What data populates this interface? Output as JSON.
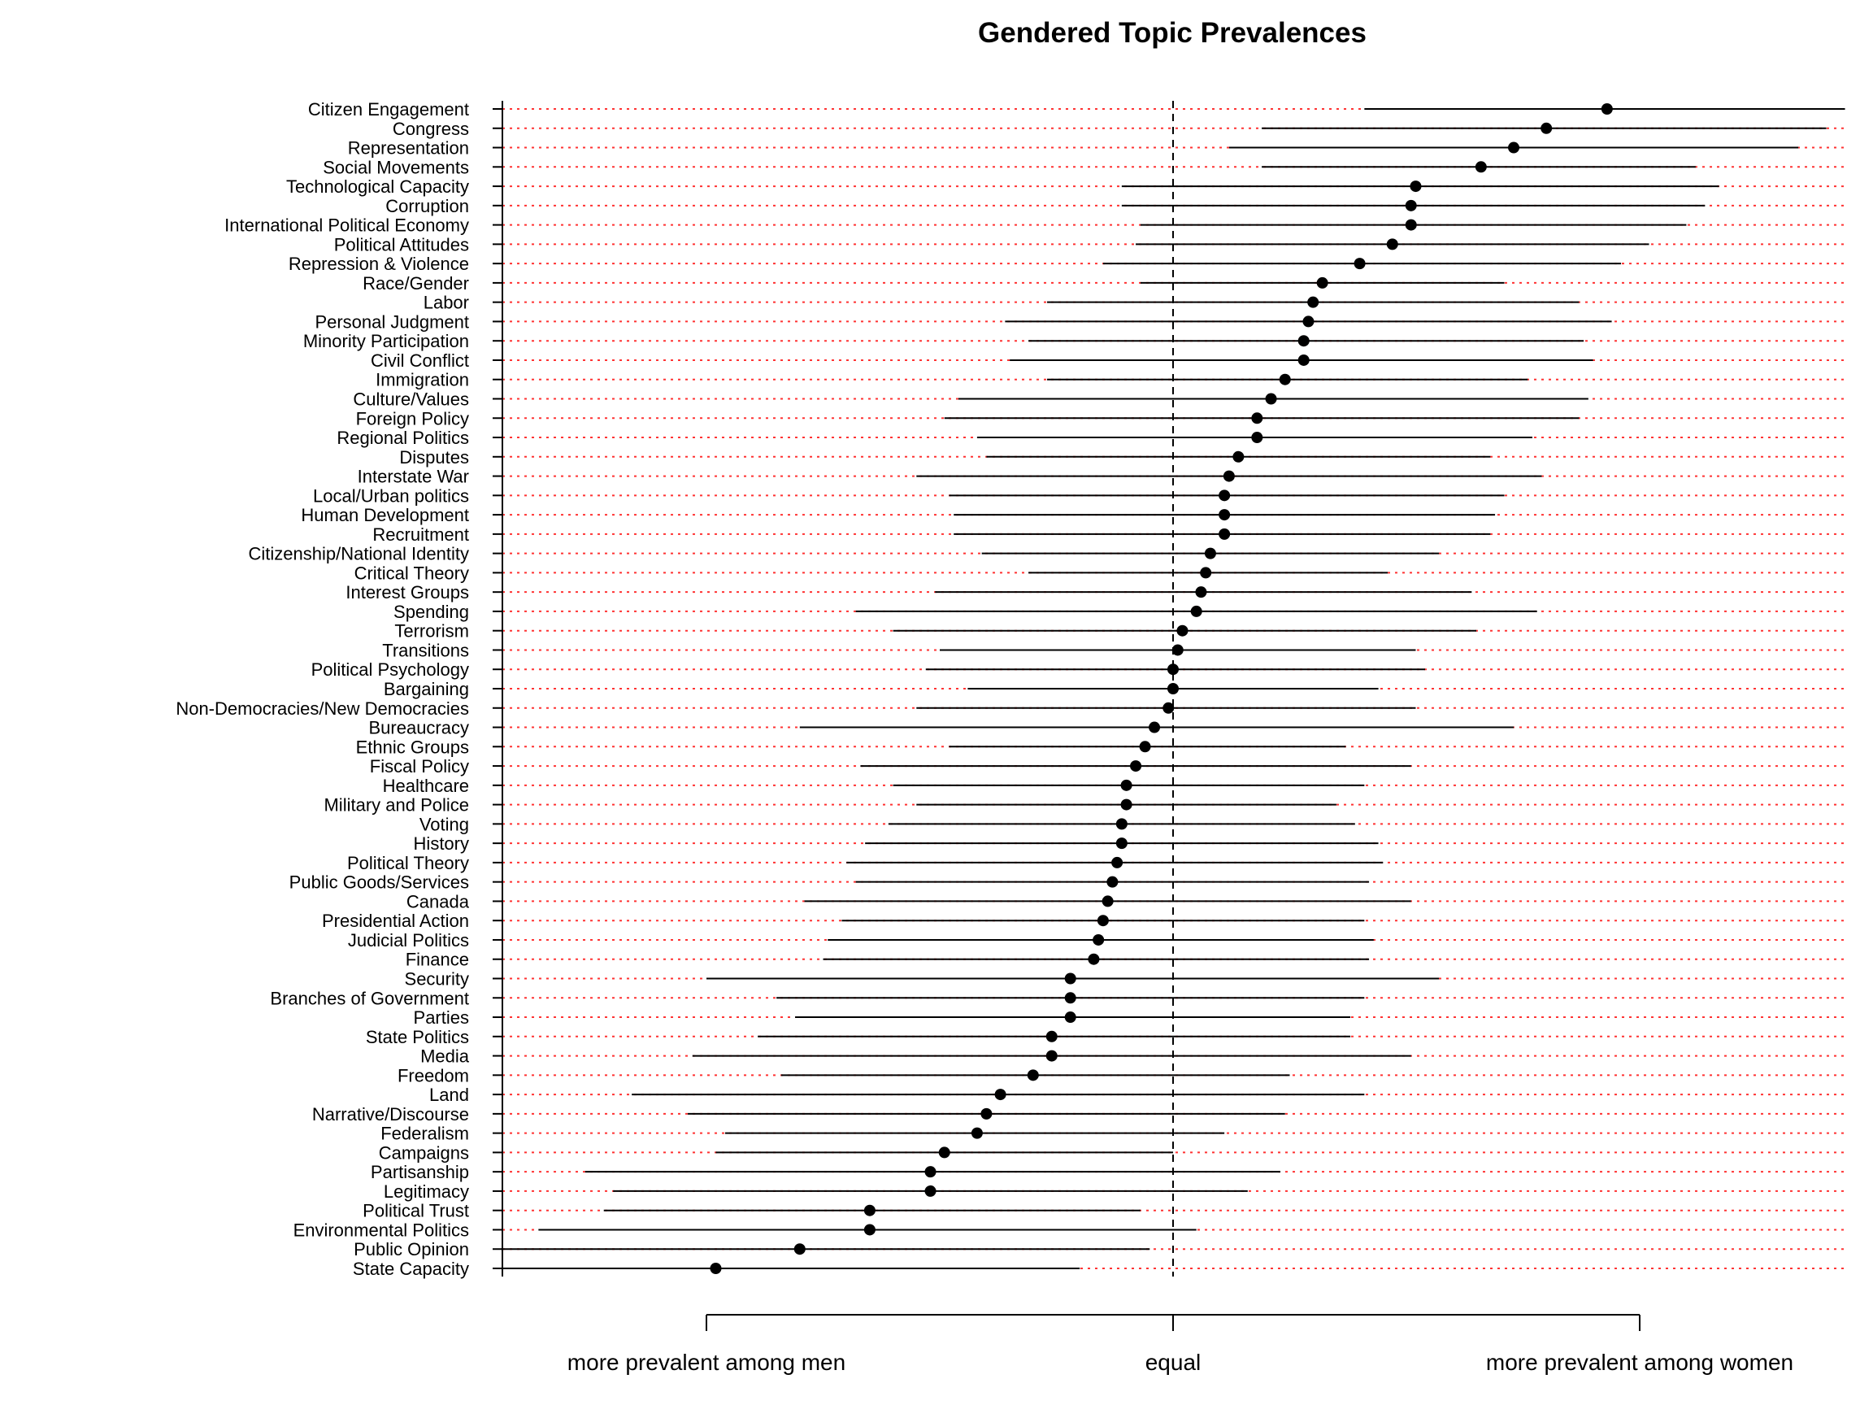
{
  "chart_data": {
    "type": "scatter",
    "title": "Gendered Topic Prevalences",
    "xlabel": "",
    "ylabel": "",
    "x_axis": {
      "ticks": [
        {
          "value": -1,
          "label": "more prevalent among men"
        },
        {
          "value": 0,
          "label": "equal"
        },
        {
          "value": 1,
          "label": "more prevalent among women"
        }
      ]
    },
    "xlim": [
      -1.44,
      1.35
    ],
    "reference_line": 0,
    "grid": "dotted red guide line per topic",
    "topics": [
      {
        "label": "Citizen Engagement",
        "estimate": 0.93,
        "lower": 0.41,
        "upper": 1.44
      },
      {
        "label": "Congress",
        "estimate": 0.8,
        "lower": 0.19,
        "upper": 1.4
      },
      {
        "label": "Representation",
        "estimate": 0.73,
        "lower": 0.12,
        "upper": 1.34
      },
      {
        "label": "Social Movements",
        "estimate": 0.66,
        "lower": 0.19,
        "upper": 1.12
      },
      {
        "label": "Technological Capacity",
        "estimate": 0.52,
        "lower": -0.11,
        "upper": 1.17
      },
      {
        "label": "Corruption",
        "estimate": 0.51,
        "lower": -0.11,
        "upper": 1.14
      },
      {
        "label": "International Political Economy",
        "estimate": 0.51,
        "lower": -0.07,
        "upper": 1.1
      },
      {
        "label": "Political Attitudes",
        "estimate": 0.47,
        "lower": -0.08,
        "upper": 1.02
      },
      {
        "label": "Repression & Violence",
        "estimate": 0.4,
        "lower": -0.15,
        "upper": 0.96
      },
      {
        "label": "Race/Gender",
        "estimate": 0.32,
        "lower": -0.07,
        "upper": 0.71
      },
      {
        "label": "Labor",
        "estimate": 0.3,
        "lower": -0.27,
        "upper": 0.87
      },
      {
        "label": "Personal Judgment",
        "estimate": 0.29,
        "lower": -0.36,
        "upper": 0.94
      },
      {
        "label": "Minority Participation",
        "estimate": 0.28,
        "lower": -0.31,
        "upper": 0.88
      },
      {
        "label": "Civil Conflict",
        "estimate": 0.28,
        "lower": -0.35,
        "upper": 0.9
      },
      {
        "label": "Immigration",
        "estimate": 0.24,
        "lower": -0.27,
        "upper": 0.76
      },
      {
        "label": "Culture/Values",
        "estimate": 0.21,
        "lower": -0.46,
        "upper": 0.89
      },
      {
        "label": "Foreign Policy",
        "estimate": 0.18,
        "lower": -0.49,
        "upper": 0.87
      },
      {
        "label": "Regional Politics",
        "estimate": 0.18,
        "lower": -0.42,
        "upper": 0.77
      },
      {
        "label": "Disputes",
        "estimate": 0.14,
        "lower": -0.4,
        "upper": 0.68
      },
      {
        "label": "Interstate War",
        "estimate": 0.12,
        "lower": -0.55,
        "upper": 0.79
      },
      {
        "label": "Local/Urban politics",
        "estimate": 0.11,
        "lower": -0.48,
        "upper": 0.71
      },
      {
        "label": "Human Development",
        "estimate": 0.11,
        "lower": -0.47,
        "upper": 0.69
      },
      {
        "label": "Recruitment",
        "estimate": 0.11,
        "lower": -0.47,
        "upper": 0.68
      },
      {
        "label": "Citizenship/National Identity",
        "estimate": 0.08,
        "lower": -0.41,
        "upper": 0.57
      },
      {
        "label": "Critical Theory",
        "estimate": 0.07,
        "lower": -0.31,
        "upper": 0.46
      },
      {
        "label": "Interest Groups",
        "estimate": 0.06,
        "lower": -0.51,
        "upper": 0.64
      },
      {
        "label": "Spending",
        "estimate": 0.05,
        "lower": -0.68,
        "upper": 0.78
      },
      {
        "label": "Terrorism",
        "estimate": 0.02,
        "lower": -0.6,
        "upper": 0.65
      },
      {
        "label": "Transitions",
        "estimate": 0.01,
        "lower": -0.5,
        "upper": 0.52
      },
      {
        "label": "Political Psychology",
        "estimate": 0.0,
        "lower": -0.53,
        "upper": 0.54
      },
      {
        "label": "Bargaining",
        "estimate": 0.0,
        "lower": -0.44,
        "upper": 0.44
      },
      {
        "label": "Non-Democracies/New Democracies",
        "estimate": -0.01,
        "lower": -0.55,
        "upper": 0.52
      },
      {
        "label": "Bureaucracy",
        "estimate": -0.04,
        "lower": -0.8,
        "upper": 0.73
      },
      {
        "label": "Ethnic Groups",
        "estimate": -0.06,
        "lower": -0.48,
        "upper": 0.37
      },
      {
        "label": "Fiscal Policy",
        "estimate": -0.08,
        "lower": -0.67,
        "upper": 0.51
      },
      {
        "label": "Healthcare",
        "estimate": -0.1,
        "lower": -0.6,
        "upper": 0.41
      },
      {
        "label": "Military and Police",
        "estimate": -0.1,
        "lower": -0.55,
        "upper": 0.35
      },
      {
        "label": "Voting",
        "estimate": -0.11,
        "lower": -0.61,
        "upper": 0.39
      },
      {
        "label": "History",
        "estimate": -0.11,
        "lower": -0.66,
        "upper": 0.44
      },
      {
        "label": "Political Theory",
        "estimate": -0.12,
        "lower": -0.7,
        "upper": 0.45
      },
      {
        "label": "Public Goods/Services",
        "estimate": -0.13,
        "lower": -0.68,
        "upper": 0.42
      },
      {
        "label": "Canada",
        "estimate": -0.14,
        "lower": -0.79,
        "upper": 0.51
      },
      {
        "label": "Presidential Action",
        "estimate": -0.15,
        "lower": -0.71,
        "upper": 0.41
      },
      {
        "label": "Judicial Politics",
        "estimate": -0.16,
        "lower": -0.74,
        "upper": 0.43
      },
      {
        "label": "Finance",
        "estimate": -0.17,
        "lower": -0.75,
        "upper": 0.42
      },
      {
        "label": "Security",
        "estimate": -0.22,
        "lower": -1.0,
        "upper": 0.57
      },
      {
        "label": "Branches of Government",
        "estimate": -0.22,
        "lower": -0.85,
        "upper": 0.41
      },
      {
        "label": "Parties",
        "estimate": -0.22,
        "lower": -0.81,
        "upper": 0.38
      },
      {
        "label": "State Politics",
        "estimate": -0.26,
        "lower": -0.89,
        "upper": 0.38
      },
      {
        "label": "Media",
        "estimate": -0.26,
        "lower": -1.03,
        "upper": 0.51
      },
      {
        "label": "Freedom",
        "estimate": -0.3,
        "lower": -0.84,
        "upper": 0.25
      },
      {
        "label": "Land",
        "estimate": -0.37,
        "lower": -1.16,
        "upper": 0.41
      },
      {
        "label": "Narrative/Discourse",
        "estimate": -0.4,
        "lower": -1.04,
        "upper": 0.24
      },
      {
        "label": "Federalism",
        "estimate": -0.42,
        "lower": -0.96,
        "upper": 0.11
      },
      {
        "label": "Campaigns",
        "estimate": -0.49,
        "lower": -0.98,
        "upper": 0.0
      },
      {
        "label": "Partisanship",
        "estimate": -0.52,
        "lower": -1.26,
        "upper": 0.23
      },
      {
        "label": "Legitimacy",
        "estimate": -0.52,
        "lower": -1.2,
        "upper": 0.16
      },
      {
        "label": "Political Trust",
        "estimate": -0.65,
        "lower": -1.22,
        "upper": -0.07
      },
      {
        "label": "Environmental Politics",
        "estimate": -0.65,
        "lower": -1.36,
        "upper": 0.05
      },
      {
        "label": "Public Opinion",
        "estimate": -0.8,
        "lower": -1.44,
        "upper": -0.05
      },
      {
        "label": "State Capacity",
        "estimate": -0.98,
        "lower": -1.44,
        "upper": -0.2
      }
    ]
  }
}
